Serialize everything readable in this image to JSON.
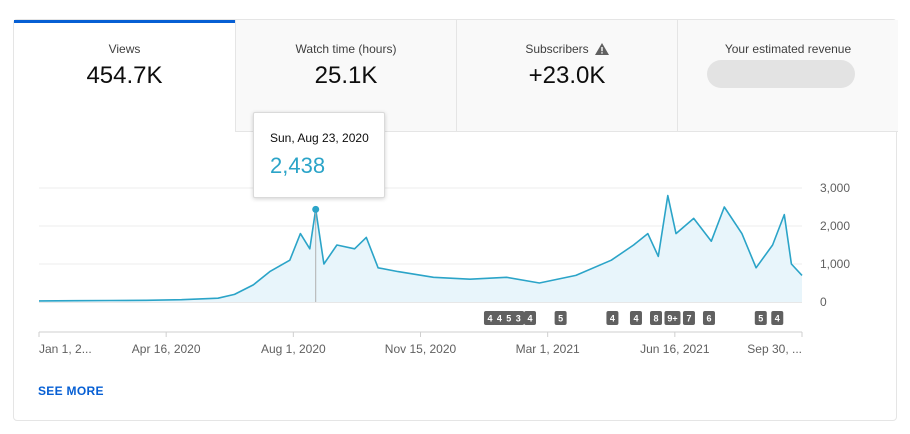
{
  "tabs": [
    {
      "label": "Views",
      "value": "454.7K",
      "active": true
    },
    {
      "label": "Watch time (hours)",
      "value": "25.1K",
      "active": false
    },
    {
      "label": "Subscribers",
      "value": "+23.0K",
      "active": false,
      "icon": "warning-icon"
    },
    {
      "label": "Your estimated revenue",
      "value": "",
      "active": false,
      "blurred": true
    }
  ],
  "tooltip": {
    "date": "Sun, Aug 23, 2020",
    "value": "2,438"
  },
  "see_more": "SEE MORE",
  "colors": {
    "accent": "#065fd4",
    "line": "#2ba4c8",
    "fill": "#e8f5fb",
    "badge": "#606060"
  },
  "chart_data": {
    "type": "area",
    "ylim": [
      0,
      3000
    ],
    "yticks": [
      "3,000",
      "2,000",
      "1,000",
      "0"
    ],
    "x_tick_labels": [
      "Jan 1, 2...",
      "Apr 16, 2020",
      "Aug 1, 2020",
      "Nov 15, 2020",
      "Mar 1, 2021",
      "Jun 16, 2021",
      "Sep 30, ..."
    ],
    "x_start": "2020-01-01",
    "x_end": "2021-10-10",
    "points": [
      [
        "2020-01-01",
        30
      ],
      [
        "2020-02-01",
        35
      ],
      [
        "2020-03-01",
        40
      ],
      [
        "2020-04-01",
        45
      ],
      [
        "2020-05-01",
        60
      ],
      [
        "2020-06-01",
        100
      ],
      [
        "2020-06-15",
        200
      ],
      [
        "2020-07-01",
        450
      ],
      [
        "2020-07-15",
        800
      ],
      [
        "2020-08-01",
        1100
      ],
      [
        "2020-08-10",
        1800
      ],
      [
        "2020-08-18",
        1400
      ],
      [
        "2020-08-23",
        2438
      ],
      [
        "2020-08-30",
        1000
      ],
      [
        "2020-09-10",
        1500
      ],
      [
        "2020-09-25",
        1400
      ],
      [
        "2020-10-05",
        1700
      ],
      [
        "2020-10-15",
        900
      ],
      [
        "2020-11-01",
        800
      ],
      [
        "2020-12-01",
        650
      ],
      [
        "2021-01-01",
        600
      ],
      [
        "2021-02-01",
        650
      ],
      [
        "2021-03-01",
        500
      ],
      [
        "2021-04-01",
        700
      ],
      [
        "2021-05-01",
        1100
      ],
      [
        "2021-05-20",
        1500
      ],
      [
        "2021-06-01",
        1800
      ],
      [
        "2021-06-10",
        1200
      ],
      [
        "2021-06-18",
        2800
      ],
      [
        "2021-06-25",
        1800
      ],
      [
        "2021-07-10",
        2200
      ],
      [
        "2021-07-25",
        1600
      ],
      [
        "2021-08-05",
        2500
      ],
      [
        "2021-08-20",
        1800
      ],
      [
        "2021-09-01",
        900
      ],
      [
        "2021-09-15",
        1500
      ],
      [
        "2021-09-25",
        2300
      ],
      [
        "2021-10-01",
        1000
      ],
      [
        "2021-10-10",
        700
      ]
    ],
    "hover_point": [
      "2020-08-23",
      2438
    ],
    "annotation_badges": [
      {
        "date": "2021-01-18",
        "label": "4"
      },
      {
        "date": "2021-01-26",
        "label": "4"
      },
      {
        "date": "2021-02-03",
        "label": "5"
      },
      {
        "date": "2021-02-11",
        "label": "3"
      },
      {
        "date": "2021-02-21",
        "label": "4"
      },
      {
        "date": "2021-03-19",
        "label": "5"
      },
      {
        "date": "2021-05-02",
        "label": "4"
      },
      {
        "date": "2021-05-22",
        "label": "4"
      },
      {
        "date": "2021-06-08",
        "label": "8"
      },
      {
        "date": "2021-06-22",
        "label": "9+"
      },
      {
        "date": "2021-07-06",
        "label": "7"
      },
      {
        "date": "2021-07-23",
        "label": "6"
      },
      {
        "date": "2021-09-05",
        "label": "5"
      },
      {
        "date": "2021-09-19",
        "label": "4"
      }
    ]
  }
}
